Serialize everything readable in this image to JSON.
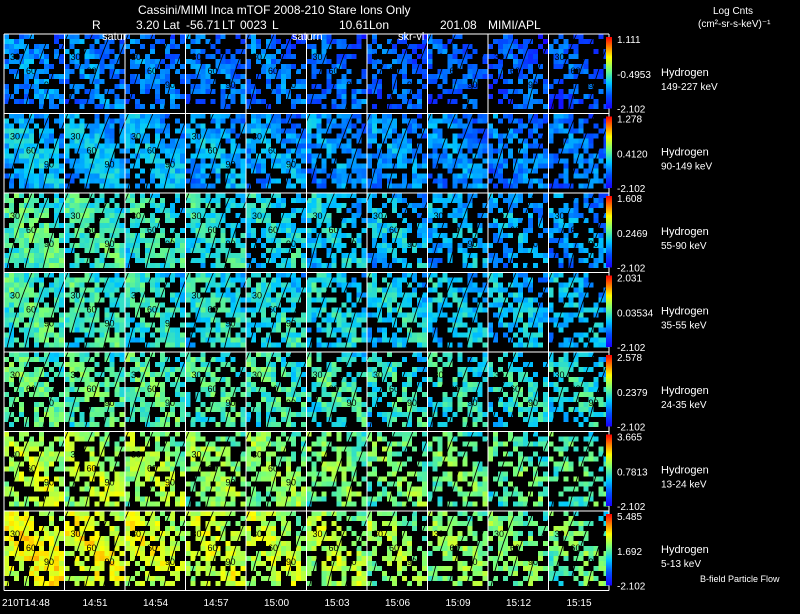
{
  "header": {
    "title": "Cassini/MIMI Inca mTOF  2008-210   Stare   Ions Only",
    "r_label": "R",
    "r_value": "3.20",
    "lat_label": "Lat",
    "lat_value": "-56.71",
    "lt_label": "LT",
    "lt_value": "0023",
    "l_label": "L",
    "l_value": "10.61",
    "lon_label": "Lon",
    "lon_value": "201.08",
    "credit": "MIMI/APL",
    "units_line1": "Log Cnts",
    "units_line2": "(cm²-sr-s-keV)⁻¹"
  },
  "markers": {
    "satur": "satur",
    "saturn": "saturn",
    "skr": "skr-vl"
  },
  "footer": {
    "bfield_label": "B-field  Particle Flow"
  },
  "colors": {
    "background": "#000000",
    "grid_line": "#ffffff",
    "contour": "#000000"
  },
  "chart_data": {
    "type": "heatmap",
    "title": "Cassini/MIMI Inca mTOF  2008-210   Stare   Ions Only",
    "time_labels": [
      "210T14:48",
      "14:51",
      "14:54",
      "14:57",
      "15:00",
      "15:03",
      "15:06",
      "15:09",
      "15:12",
      "15:15"
    ],
    "contour_labels": [
      "30",
      "60",
      "90"
    ],
    "channels": [
      {
        "species": "Hydrogen",
        "energy": "149-227 keV",
        "max": "1.111",
        "mid": "-0.4953",
        "min": "-2.102",
        "level": 0.22,
        "fill": 0.7,
        "decay": 0.4
      },
      {
        "species": "Hydrogen",
        "energy": "90-149 keV",
        "max": "1.278",
        "mid": "0.4120",
        "min": "-2.102",
        "level": 0.3,
        "fill": 0.95,
        "decay": 0.35
      },
      {
        "species": "Hydrogen",
        "energy": "55-90 keV",
        "max": "1.608",
        "mid": "0.2469",
        "min": "-2.102",
        "level": 0.44,
        "fill": 0.85,
        "decay": 0.45
      },
      {
        "species": "Hydrogen",
        "energy": "35-55 keV",
        "max": "2.031",
        "mid": "0.03534",
        "min": "-2.102",
        "level": 0.42,
        "fill": 0.85,
        "decay": 0.3
      },
      {
        "species": "Hydrogen",
        "energy": "24-35 keV",
        "max": "2.578",
        "mid": "0.2379",
        "min": "-2.102",
        "level": 0.46,
        "fill": 0.7,
        "decay": 0.2
      },
      {
        "species": "Hydrogen",
        "energy": "13-24 keV",
        "max": "3.665",
        "mid": "0.7813",
        "min": "-2.102",
        "level": 0.58,
        "fill": 0.72,
        "decay": 0.25
      },
      {
        "species": "Hydrogen",
        "energy": "5-13 keV",
        "max": "5.485",
        "mid": "1.692",
        "min": "-2.102",
        "level": 0.66,
        "fill": 0.8,
        "decay": 0.28
      }
    ]
  }
}
